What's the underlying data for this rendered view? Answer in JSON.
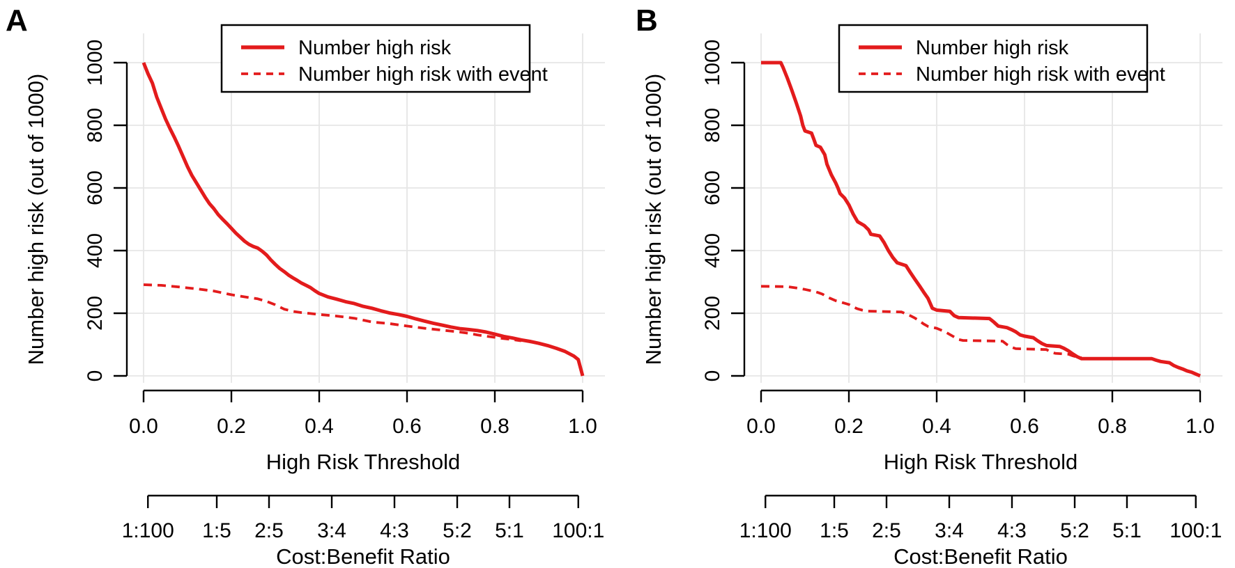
{
  "figure": {
    "background": "#ffffff",
    "curve_color": "#e31b1c",
    "grid_color": "#e6e6e6",
    "axis_color": "#000000",
    "panels": [
      {
        "letter": "A",
        "letter_x": 8
      },
      {
        "letter": "B",
        "letter_x": 26
      }
    ]
  },
  "legend": {
    "items": [
      {
        "label": "Number high risk",
        "style": "solid"
      },
      {
        "label": "Number high risk with event",
        "style": "dashed"
      }
    ]
  },
  "axes": {
    "y_label": "Number high risk (out of 1000)",
    "y_ticks": [
      0,
      200,
      400,
      600,
      800,
      1000
    ],
    "x_label": "High Risk Threshold",
    "x_ticks": [
      "0.0",
      "0.2",
      "0.4",
      "0.6",
      "0.8",
      "1.0"
    ],
    "cost_label": "Cost:Benefit Ratio",
    "cost_ticks": [
      {
        "label": "1:100",
        "t": 0.0099
      },
      {
        "label": "1:5",
        "t": 0.1667
      },
      {
        "label": "2:5",
        "t": 0.2857
      },
      {
        "label": "3:4",
        "t": 0.4286
      },
      {
        "label": "4:3",
        "t": 0.5714
      },
      {
        "label": "5:2",
        "t": 0.7143
      },
      {
        "label": "5:1",
        "t": 0.8333
      },
      {
        "label": "100:1",
        "t": 0.9901
      }
    ]
  },
  "chart_data": [
    {
      "type": "line",
      "panel": "A",
      "xlabel": "High Risk Threshold",
      "ylabel": "Number high risk (out of 1000)",
      "secondary_xlabel": "Cost:Benefit Ratio",
      "secondary_x_ticks": [
        "1:100",
        "1:5",
        "2:5",
        "3:4",
        "4:3",
        "5:2",
        "5:1",
        "100:1"
      ],
      "xlim": [
        0,
        1
      ],
      "ylim": [
        0,
        1000
      ],
      "grid": true,
      "legend_position": "top-right",
      "series": [
        {
          "name": "Number high risk",
          "style": "solid",
          "points": [
            [
              0,
              1000
            ],
            [
              0.01,
              965
            ],
            [
              0.02,
              935
            ],
            [
              0.03,
              890
            ],
            [
              0.04,
              855
            ],
            [
              0.05,
              820
            ],
            [
              0.06,
              790
            ],
            [
              0.07,
              762
            ],
            [
              0.08,
              732
            ],
            [
              0.09,
              700
            ],
            [
              0.1,
              668
            ],
            [
              0.11,
              640
            ],
            [
              0.12,
              617
            ],
            [
              0.13,
              594
            ],
            [
              0.14,
              571
            ],
            [
              0.15,
              550
            ],
            [
              0.16,
              534
            ],
            [
              0.17,
              515
            ],
            [
              0.18,
              500
            ],
            [
              0.19,
              486
            ],
            [
              0.2,
              471
            ],
            [
              0.21,
              456
            ],
            [
              0.22,
              443
            ],
            [
              0.23,
              430
            ],
            [
              0.24,
              420
            ],
            [
              0.25,
              413
            ],
            [
              0.26,
              408
            ],
            [
              0.27,
              398
            ],
            [
              0.28,
              386
            ],
            [
              0.29,
              370
            ],
            [
              0.3,
              356
            ],
            [
              0.31,
              343
            ],
            [
              0.32,
              333
            ],
            [
              0.33,
              322
            ],
            [
              0.34,
              313
            ],
            [
              0.35,
              305
            ],
            [
              0.36,
              296
            ],
            [
              0.37,
              289
            ],
            [
              0.38,
              282
            ],
            [
              0.39,
              272
            ],
            [
              0.4,
              263
            ],
            [
              0.42,
              252
            ],
            [
              0.44,
              245
            ],
            [
              0.46,
              237
            ],
            [
              0.48,
              231
            ],
            [
              0.5,
              222
            ],
            [
              0.52,
              216
            ],
            [
              0.54,
              208
            ],
            [
              0.56,
              201
            ],
            [
              0.58,
              196
            ],
            [
              0.6,
              190
            ],
            [
              0.62,
              182
            ],
            [
              0.64,
              175
            ],
            [
              0.66,
              168
            ],
            [
              0.68,
              162
            ],
            [
              0.7,
              156
            ],
            [
              0.72,
              151
            ],
            [
              0.74,
              148
            ],
            [
              0.76,
              145
            ],
            [
              0.78,
              140
            ],
            [
              0.8,
              133
            ],
            [
              0.82,
              126
            ],
            [
              0.84,
              121
            ],
            [
              0.86,
              115
            ],
            [
              0.88,
              110
            ],
            [
              0.9,
              104
            ],
            [
              0.92,
              97
            ],
            [
              0.94,
              88
            ],
            [
              0.96,
              78
            ],
            [
              0.98,
              63
            ],
            [
              0.99,
              52
            ],
            [
              1,
              0
            ]
          ]
        },
        {
          "name": "Number high risk with event",
          "style": "dashed",
          "points": [
            [
              0,
              291
            ],
            [
              0.04,
              289
            ],
            [
              0.08,
              284
            ],
            [
              0.12,
              278
            ],
            [
              0.16,
              271
            ],
            [
              0.2,
              259
            ],
            [
              0.24,
              250
            ],
            [
              0.26,
              246
            ],
            [
              0.28,
              238
            ],
            [
              0.3,
              227
            ],
            [
              0.32,
              213
            ],
            [
              0.34,
              206
            ],
            [
              0.36,
              202
            ],
            [
              0.38,
              199
            ],
            [
              0.4,
              196
            ],
            [
              0.44,
              191
            ],
            [
              0.48,
              184
            ],
            [
              0.5,
              178
            ],
            [
              0.52,
              172
            ],
            [
              0.56,
              167
            ],
            [
              0.6,
              159
            ],
            [
              0.64,
              152
            ],
            [
              0.68,
              146
            ],
            [
              0.7,
              143
            ],
            [
              0.72,
              140
            ],
            [
              0.74,
              136
            ],
            [
              0.76,
              131
            ],
            [
              0.78,
              127
            ],
            [
              0.8,
              123
            ],
            [
              0.82,
              119
            ],
            [
              0.84,
              116
            ],
            [
              0.86,
              112
            ]
          ]
        }
      ]
    },
    {
      "type": "line",
      "panel": "B",
      "xlabel": "High Risk Threshold",
      "ylabel": "Number high risk (out of 1000)",
      "secondary_xlabel": "Cost:Benefit Ratio",
      "secondary_x_ticks": [
        "1:100",
        "1:5",
        "2:5",
        "3:4",
        "4:3",
        "5:2",
        "5:1",
        "100:1"
      ],
      "xlim": [
        0,
        1
      ],
      "ylim": [
        0,
        1000
      ],
      "grid": true,
      "legend_position": "top-right",
      "series": [
        {
          "name": "Number high risk",
          "style": "solid",
          "points": [
            [
              0,
              1000
            ],
            [
              0.045,
              1000
            ],
            [
              0.05,
              985
            ],
            [
              0.06,
              950
            ],
            [
              0.07,
              912
            ],
            [
              0.08,
              872
            ],
            [
              0.09,
              830
            ],
            [
              0.095,
              800
            ],
            [
              0.1,
              782
            ],
            [
              0.115,
              775
            ],
            [
              0.12,
              756
            ],
            [
              0.125,
              736
            ],
            [
              0.135,
              730
            ],
            [
              0.145,
              706
            ],
            [
              0.15,
              676
            ],
            [
              0.16,
              642
            ],
            [
              0.17,
              616
            ],
            [
              0.175,
              600
            ],
            [
              0.18,
              582
            ],
            [
              0.19,
              568
            ],
            [
              0.2,
              546
            ],
            [
              0.21,
              516
            ],
            [
              0.22,
              492
            ],
            [
              0.235,
              480
            ],
            [
              0.245,
              466
            ],
            [
              0.25,
              452
            ],
            [
              0.27,
              447
            ],
            [
              0.28,
              426
            ],
            [
              0.29,
              400
            ],
            [
              0.3,
              378
            ],
            [
              0.31,
              361
            ],
            [
              0.33,
              352
            ],
            [
              0.34,
              330
            ],
            [
              0.35,
              309
            ],
            [
              0.36,
              289
            ],
            [
              0.37,
              268
            ],
            [
              0.38,
              248
            ],
            [
              0.385,
              232
            ],
            [
              0.39,
              216
            ],
            [
              0.4,
              210
            ],
            [
              0.43,
              206
            ],
            [
              0.44,
              192
            ],
            [
              0.45,
              186
            ],
            [
              0.52,
              183
            ],
            [
              0.53,
              172
            ],
            [
              0.54,
              159
            ],
            [
              0.56,
              154
            ],
            [
              0.57,
              148
            ],
            [
              0.58,
              141
            ],
            [
              0.59,
              131
            ],
            [
              0.6,
              127
            ],
            [
              0.62,
              122
            ],
            [
              0.63,
              112
            ],
            [
              0.64,
              103
            ],
            [
              0.65,
              97
            ],
            [
              0.68,
              94
            ],
            [
              0.69,
              88
            ],
            [
              0.7,
              80
            ],
            [
              0.71,
              70
            ],
            [
              0.72,
              61
            ],
            [
              0.73,
              55
            ],
            [
              0.89,
              55
            ],
            [
              0.9,
              50
            ],
            [
              0.91,
              46
            ],
            [
              0.93,
              42
            ],
            [
              0.94,
              33
            ],
            [
              0.95,
              27
            ],
            [
              0.96,
              22
            ],
            [
              0.97,
              16
            ],
            [
              0.98,
              12
            ],
            [
              0.99,
              6
            ],
            [
              1,
              0
            ]
          ]
        },
        {
          "name": "Number high risk with event",
          "style": "dashed",
          "points": [
            [
              0,
              286
            ],
            [
              0.06,
              285
            ],
            [
              0.08,
              281
            ],
            [
              0.1,
              276
            ],
            [
              0.12,
              270
            ],
            [
              0.13,
              266
            ],
            [
              0.14,
              261
            ],
            [
              0.15,
              252
            ],
            [
              0.16,
              246
            ],
            [
              0.17,
              240
            ],
            [
              0.18,
              236
            ],
            [
              0.19,
              232
            ],
            [
              0.2,
              228
            ],
            [
              0.21,
              220
            ],
            [
              0.22,
              214
            ],
            [
              0.23,
              210
            ],
            [
              0.24,
              207
            ],
            [
              0.32,
              204
            ],
            [
              0.33,
              198
            ],
            [
              0.34,
              192
            ],
            [
              0.35,
              185
            ],
            [
              0.36,
              176
            ],
            [
              0.37,
              166
            ],
            [
              0.38,
              158
            ],
            [
              0.4,
              152
            ],
            [
              0.41,
              146
            ],
            [
              0.42,
              140
            ],
            [
              0.43,
              132
            ],
            [
              0.44,
              124
            ],
            [
              0.45,
              116
            ],
            [
              0.46,
              113
            ],
            [
              0.55,
              111
            ],
            [
              0.56,
              100
            ],
            [
              0.57,
              92
            ],
            [
              0.58,
              87
            ],
            [
              0.65,
              84
            ],
            [
              0.66,
              76
            ],
            [
              0.67,
              72
            ],
            [
              0.7,
              69
            ],
            [
              0.71,
              64
            ],
            [
              0.72,
              60
            ],
            [
              0.73,
              58
            ]
          ]
        }
      ]
    }
  ]
}
